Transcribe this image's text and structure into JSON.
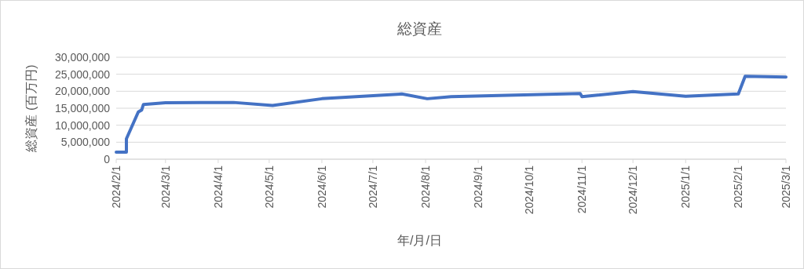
{
  "chart_data": {
    "type": "line",
    "title": "総資産",
    "xlabel": "年/月/日",
    "ylabel": "総資産 (百万円)",
    "x": [
      "2024-02-01",
      "2024-02-07",
      "2024-02-07",
      "2024-02-14",
      "2024-02-16",
      "2024-02-17",
      "2024-03-01",
      "2024-04-10",
      "2024-05-03",
      "2024-06-01",
      "2024-07-18",
      "2024-08-02",
      "2024-08-16",
      "2024-10-31",
      "2024-11-01",
      "2024-12-01",
      "2025-01-01",
      "2025-02-01",
      "2025-02-05",
      "2025-03-01"
    ],
    "series": [
      {
        "color": "#4472c4",
        "values": [
          2100000,
          2100000,
          6000000,
          13900000,
          14500000,
          16100000,
          16600000,
          16700000,
          15800000,
          17800000,
          19200000,
          17800000,
          18400000,
          19300000,
          18400000,
          19900000,
          18500000,
          19200000,
          24400000,
          24200000
        ]
      }
    ],
    "xlim": [
      "2024-02-01",
      "2025-03-01"
    ],
    "xticks": [
      {
        "value": "2024-02-01",
        "label": "2024/2/1"
      },
      {
        "value": "2024-03-01",
        "label": "2024/3/1"
      },
      {
        "value": "2024-04-01",
        "label": "2024/4/1"
      },
      {
        "value": "2024-05-01",
        "label": "2024/5/1"
      },
      {
        "value": "2024-06-01",
        "label": "2024/6/1"
      },
      {
        "value": "2024-07-01",
        "label": "2024/7/1"
      },
      {
        "value": "2024-08-01",
        "label": "2024/8/1"
      },
      {
        "value": "2024-09-01",
        "label": "2024/9/1"
      },
      {
        "value": "2024-10-01",
        "label": "2024/10/1"
      },
      {
        "value": "2024-11-01",
        "label": "2024/11/1"
      },
      {
        "value": "2024-12-01",
        "label": "2024/12/1"
      },
      {
        "value": "2025-01-01",
        "label": "2025/1/1"
      },
      {
        "value": "2025-02-01",
        "label": "2025/2/1"
      },
      {
        "value": "2025-03-01",
        "label": "2025/3/1"
      }
    ],
    "ylim": [
      0,
      30000000
    ],
    "yticks": [
      0,
      {
        "value": 5000000,
        "label": "5,000,000"
      },
      {
        "value": 10000000,
        "label": "10,000,000"
      },
      {
        "value": 15000000,
        "label": "15,000,000"
      },
      {
        "value": 20000000,
        "label": "20,000,000"
      },
      {
        "value": 25000000,
        "label": "25,000,000"
      },
      {
        "value": 30000000,
        "label": "30,000,000"
      }
    ],
    "grid": "y",
    "marker": "none",
    "line_style": "solid"
  }
}
